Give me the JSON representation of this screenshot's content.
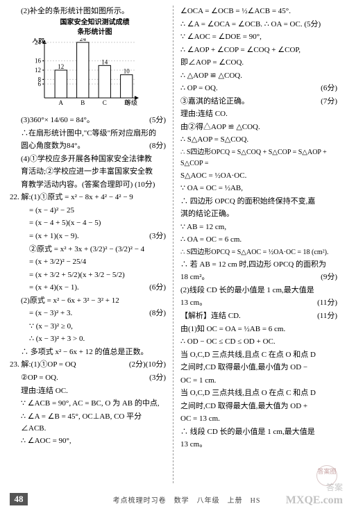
{
  "left": {
    "l1": "(2)补全的条形统计图如图所示。",
    "chart": {
      "title1": "国家安全知识测试成绩",
      "title2": "条形统计图",
      "ylabel": "人数",
      "xlabel": "等级",
      "categories": [
        "A",
        "B",
        "C",
        "D"
      ],
      "values": [
        12,
        24,
        14,
        10
      ],
      "yticks": [
        6,
        8,
        12,
        16,
        24
      ],
      "bar_color": "#ffffff",
      "bar_stroke": "#000000",
      "axis_color": "#000000",
      "height": 110,
      "width": 170
    },
    "s2": "(5分)",
    "l3": "(3)360°× 14/60 = 84°。",
    "l4": "∴在扇形统计图中,\"C等级\"所对应扇形的",
    "l5": "圆心角度数为84°。",
    "s5": "(8分)",
    "l6": "(4)①学校应多开展各种国家安全法律教",
    "l7": "育活动;②学校应进一步丰富国家安全教",
    "l8": "育教学活动内容。(答案合理即可) (10分)",
    "l9": "22. 解:(1)①原式 = x² − 8x + 4² − 4² − 9",
    "l10": "= (x − 4)² − 25",
    "l11": "= (x − 4 + 5)(x − 4 − 5)",
    "l12": "= (x + 1)(x − 9).",
    "s12": "(3分)",
    "l13": "②原式 = x² + 3x + (3/2)² − (3/2)² − 4",
    "l14": "= (x + 3/2)² − 25/4",
    "l15": "= (x + 3/2 + 5/2)(x + 3/2 − 5/2)",
    "l16": "= (x + 4)(x − 1).",
    "s16": "(6分)",
    "l17": "(2)原式 = x² − 6x + 3² − 3² + 12",
    "l18": "= (x − 3)² + 3.",
    "s18": "(8分)",
    "l19": "∵ (x − 3)² ≥ 0,",
    "l20": "∴ (x − 3)² + 3 > 0.",
    "l21": "∴ 多项式 x² − 6x + 12 的值总是正数。",
    "s21": "(10分)",
    "l22": "23. 解:(1)①OP = OQ",
    "s22": "(2分)",
    "l23": "②OP = OQ.",
    "s23": "(3分)",
    "l24": "理由:连结 OC.",
    "l25": "∵ ∠ACB = 90°, AC = BC, O 为 AB 的中点,",
    "l26": "∴ ∠A = ∠B = 45°, OC⊥AB, CO 平分∠ACB.",
    "l27": "∴ ∠AOC = 90°,"
  },
  "right": {
    "r1": "∠OCA = ∠OCB = ½∠ACB = 45°.",
    "r2": "∴ ∠A = ∠OCA = ∠OCB. ∴ OA = OC.  (5分)",
    "r3": "∵ ∠AOC = ∠DOE = 90°,",
    "r4": "∴ ∠AOP + ∠COP = ∠COQ + ∠COP,",
    "r5": "即∠AOP = ∠COQ.",
    "r6": "∴ △AOP ≌ △COQ.",
    "r7": "∴ OP = OQ.",
    "sr7": "(6分)",
    "r8": "③嘉淇的结论正确。",
    "sr8": "(7分)",
    "r9": "理由:连结 CO.",
    "r10": "由②得△AOP ≌ △COQ.",
    "r11": "∴ S△AOP = S△COQ.",
    "r12": "∴ S四边形OPCQ = S△COQ + S△COP = S△AOP + S△COP =",
    "r13": "S△AOC = ½OA·OC.",
    "r14": "∵ OA = OC = ½AB,",
    "r15": "∴ 四边形 OPCQ 的面积始终保持不变,嘉",
    "r16": "淇的结论正确。",
    "r17": "∵ AB = 12 cm,",
    "r18": "∴ OA = OC = 6 cm.",
    "r19": "∴ S四边形OPCQ = S△AOC = ½OA·OC = 18 (cm²).",
    "r20": "∴ 若 AB = 12 cm 时,四边形 OPCQ 的面积为",
    "r21": "18 cm²。",
    "sr21": "(9分)",
    "r22": "(2)线段 CD 长的最小值是 1 cm,最大值是",
    "r23": "13 cm。",
    "sr23": "(11分)",
    "r24": "【解析】连结 CD.",
    "sr24": "(11分)",
    "r25": "由(1)知 OC = OA = ½AB = 6 cm.",
    "r26": "∴ OD − OC ≤ CD ≤ OD + OC.",
    "r27": "当 O,C,D 三点共线,且点 C 在点 O 和点 D",
    "r28": "之间时,CD 取得最小值,最小值为 OD −",
    "r29": "OC = 1 cm.",
    "r30": "当 O,C,D 三点共线,且点 O 在点 C 和点 D",
    "r31": "之间时,CD 取得最大值,最大值为 OD +",
    "r32": "OC = 13 cm.",
    "r33": "∴ 线段 CD 长的最小值是 1 cm,最大值是",
    "r34": "13 cm。"
  },
  "footer": {
    "page": "48",
    "text": "考点梳理时习卷　数学　八年级　上册　HS"
  },
  "watermarks": {
    "w1": "MXQE.com",
    "w2": "答案",
    "w3": "答案圈"
  }
}
